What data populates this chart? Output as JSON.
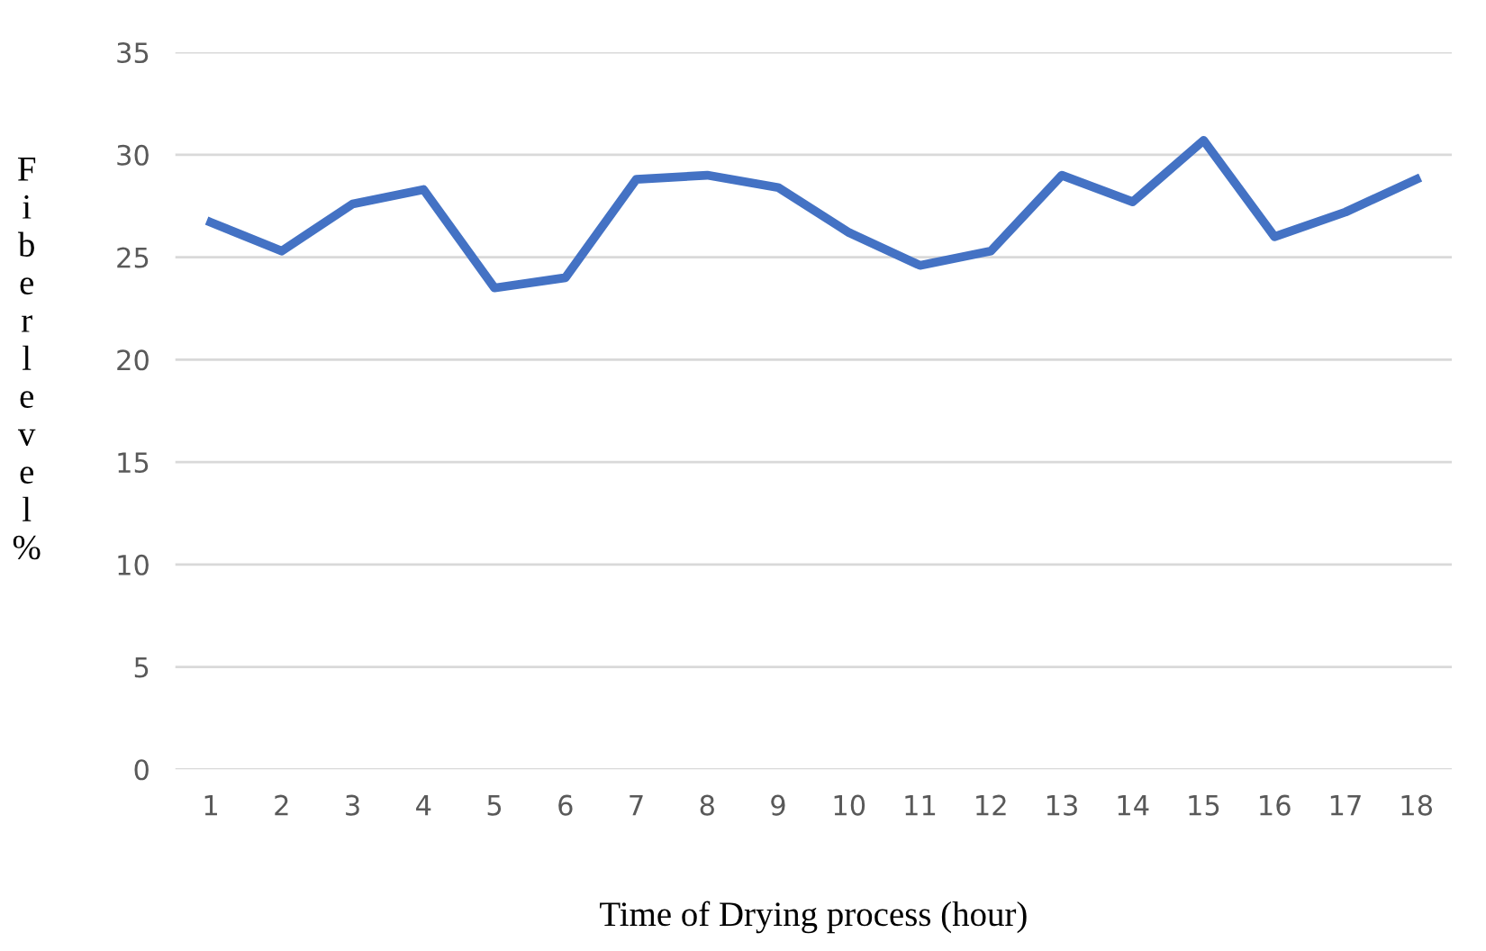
{
  "chart_data": {
    "type": "line",
    "xlabel": "Time of Drying process (hour)",
    "ylabel": "Fiber level %",
    "categories": [
      "1",
      "2",
      "3",
      "4",
      "5",
      "6",
      "7",
      "8",
      "9",
      "10",
      "11",
      "12",
      "13",
      "14",
      "15",
      "16",
      "17",
      "18"
    ],
    "series": [
      {
        "color": "#4472c4",
        "values": [
          26.7,
          25.3,
          27.6,
          28.3,
          23.5,
          24.0,
          28.8,
          29.0,
          28.4,
          26.2,
          24.6,
          25.3,
          29.0,
          27.7,
          30.7,
          26.0,
          27.2,
          28.8
        ]
      }
    ],
    "ylim": [
      0,
      35
    ],
    "yticks": [
      0,
      5,
      10,
      15,
      20,
      25,
      30,
      35
    ],
    "grid": "y",
    "legend": false,
    "marker": "none",
    "line_style": "solid"
  }
}
